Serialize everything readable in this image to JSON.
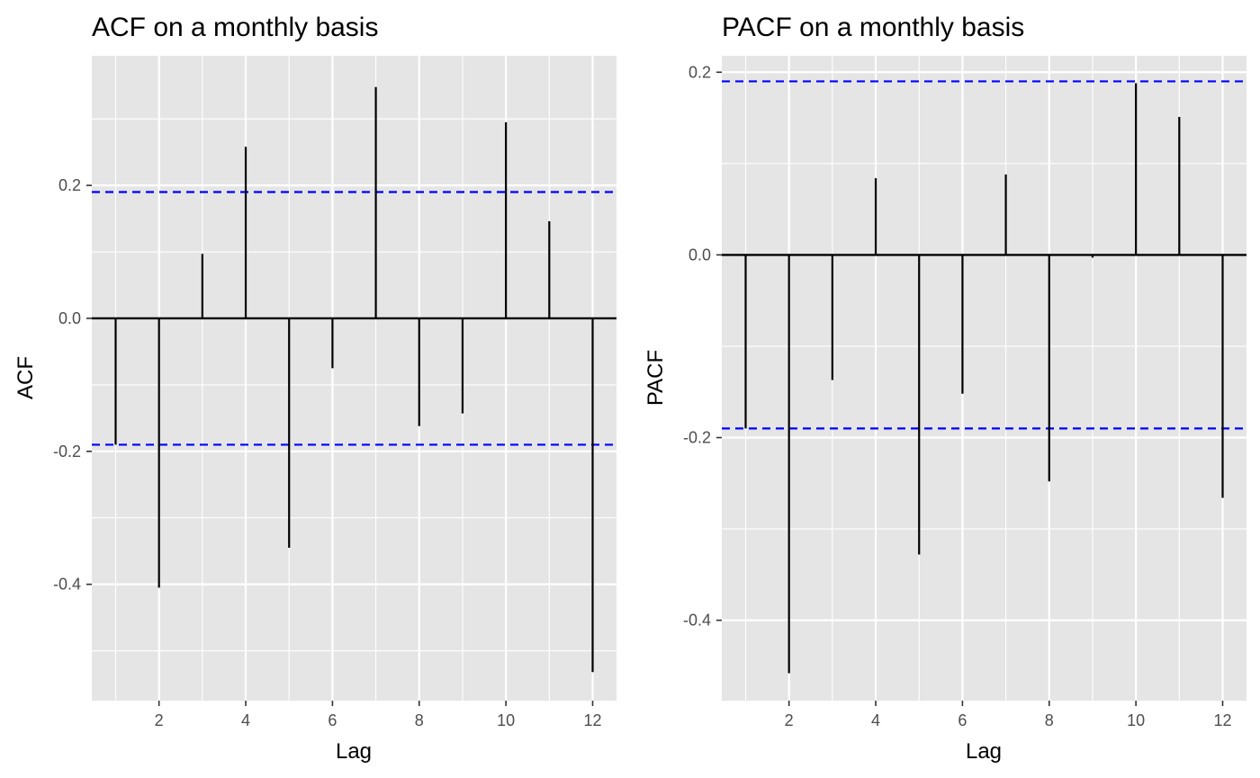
{
  "chart_data": [
    {
      "type": "bar",
      "title": "ACF on a monthly basis",
      "xlabel": "Lag",
      "ylabel": "ACF",
      "x": [
        1,
        2,
        3,
        4,
        5,
        6,
        7,
        8,
        9,
        10,
        11,
        12
      ],
      "values": [
        -0.19,
        -0.405,
        0.097,
        0.258,
        -0.345,
        -0.075,
        0.348,
        -0.162,
        -0.143,
        0.295,
        0.146,
        -0.532
      ],
      "confidence_bounds": [
        0.19,
        -0.19
      ],
      "xlim": [
        0.45,
        12.55
      ],
      "ylim": [
        -0.575,
        0.395
      ],
      "xticks": [
        2,
        4,
        6,
        8,
        10,
        12
      ],
      "yticks": [
        -0.4,
        -0.2,
        0.0,
        0.2
      ],
      "xtick_labels": [
        "2",
        "4",
        "6",
        "8",
        "10",
        "12"
      ],
      "ytick_labels": [
        "-0.4",
        "-0.2",
        "0.0",
        "0.2"
      ],
      "grid": true,
      "zero_line": true
    },
    {
      "type": "bar",
      "title": "PACF on a monthly basis",
      "xlabel": "Lag",
      "ylabel": "PACF",
      "x": [
        1,
        2,
        3,
        4,
        5,
        6,
        7,
        8,
        9,
        10,
        11,
        12
      ],
      "values": [
        -0.19,
        -0.458,
        -0.137,
        0.084,
        -0.328,
        -0.152,
        0.088,
        -0.248,
        -0.003,
        0.188,
        0.151,
        -0.266
      ],
      "confidence_bounds": [
        0.19,
        -0.19
      ],
      "xlim": [
        0.45,
        12.55
      ],
      "ylim": [
        -0.488,
        0.218
      ],
      "xticks": [
        2,
        4,
        6,
        8,
        10,
        12
      ],
      "yticks": [
        -0.4,
        -0.2,
        0.0,
        0.2
      ],
      "xtick_labels": [
        "2",
        "4",
        "6",
        "8",
        "10",
        "12"
      ],
      "ytick_labels": [
        "-0.4",
        "-0.2",
        "0.0",
        "0.2"
      ],
      "grid": true,
      "zero_line": true
    }
  ],
  "colors": {
    "panel_background": "#e5e5e5",
    "grid_line": "#ffffff",
    "bar": "#000000",
    "confidence_line": "#0000ff",
    "zero_line": "#000000",
    "tick_label": "#4d4d4d"
  }
}
